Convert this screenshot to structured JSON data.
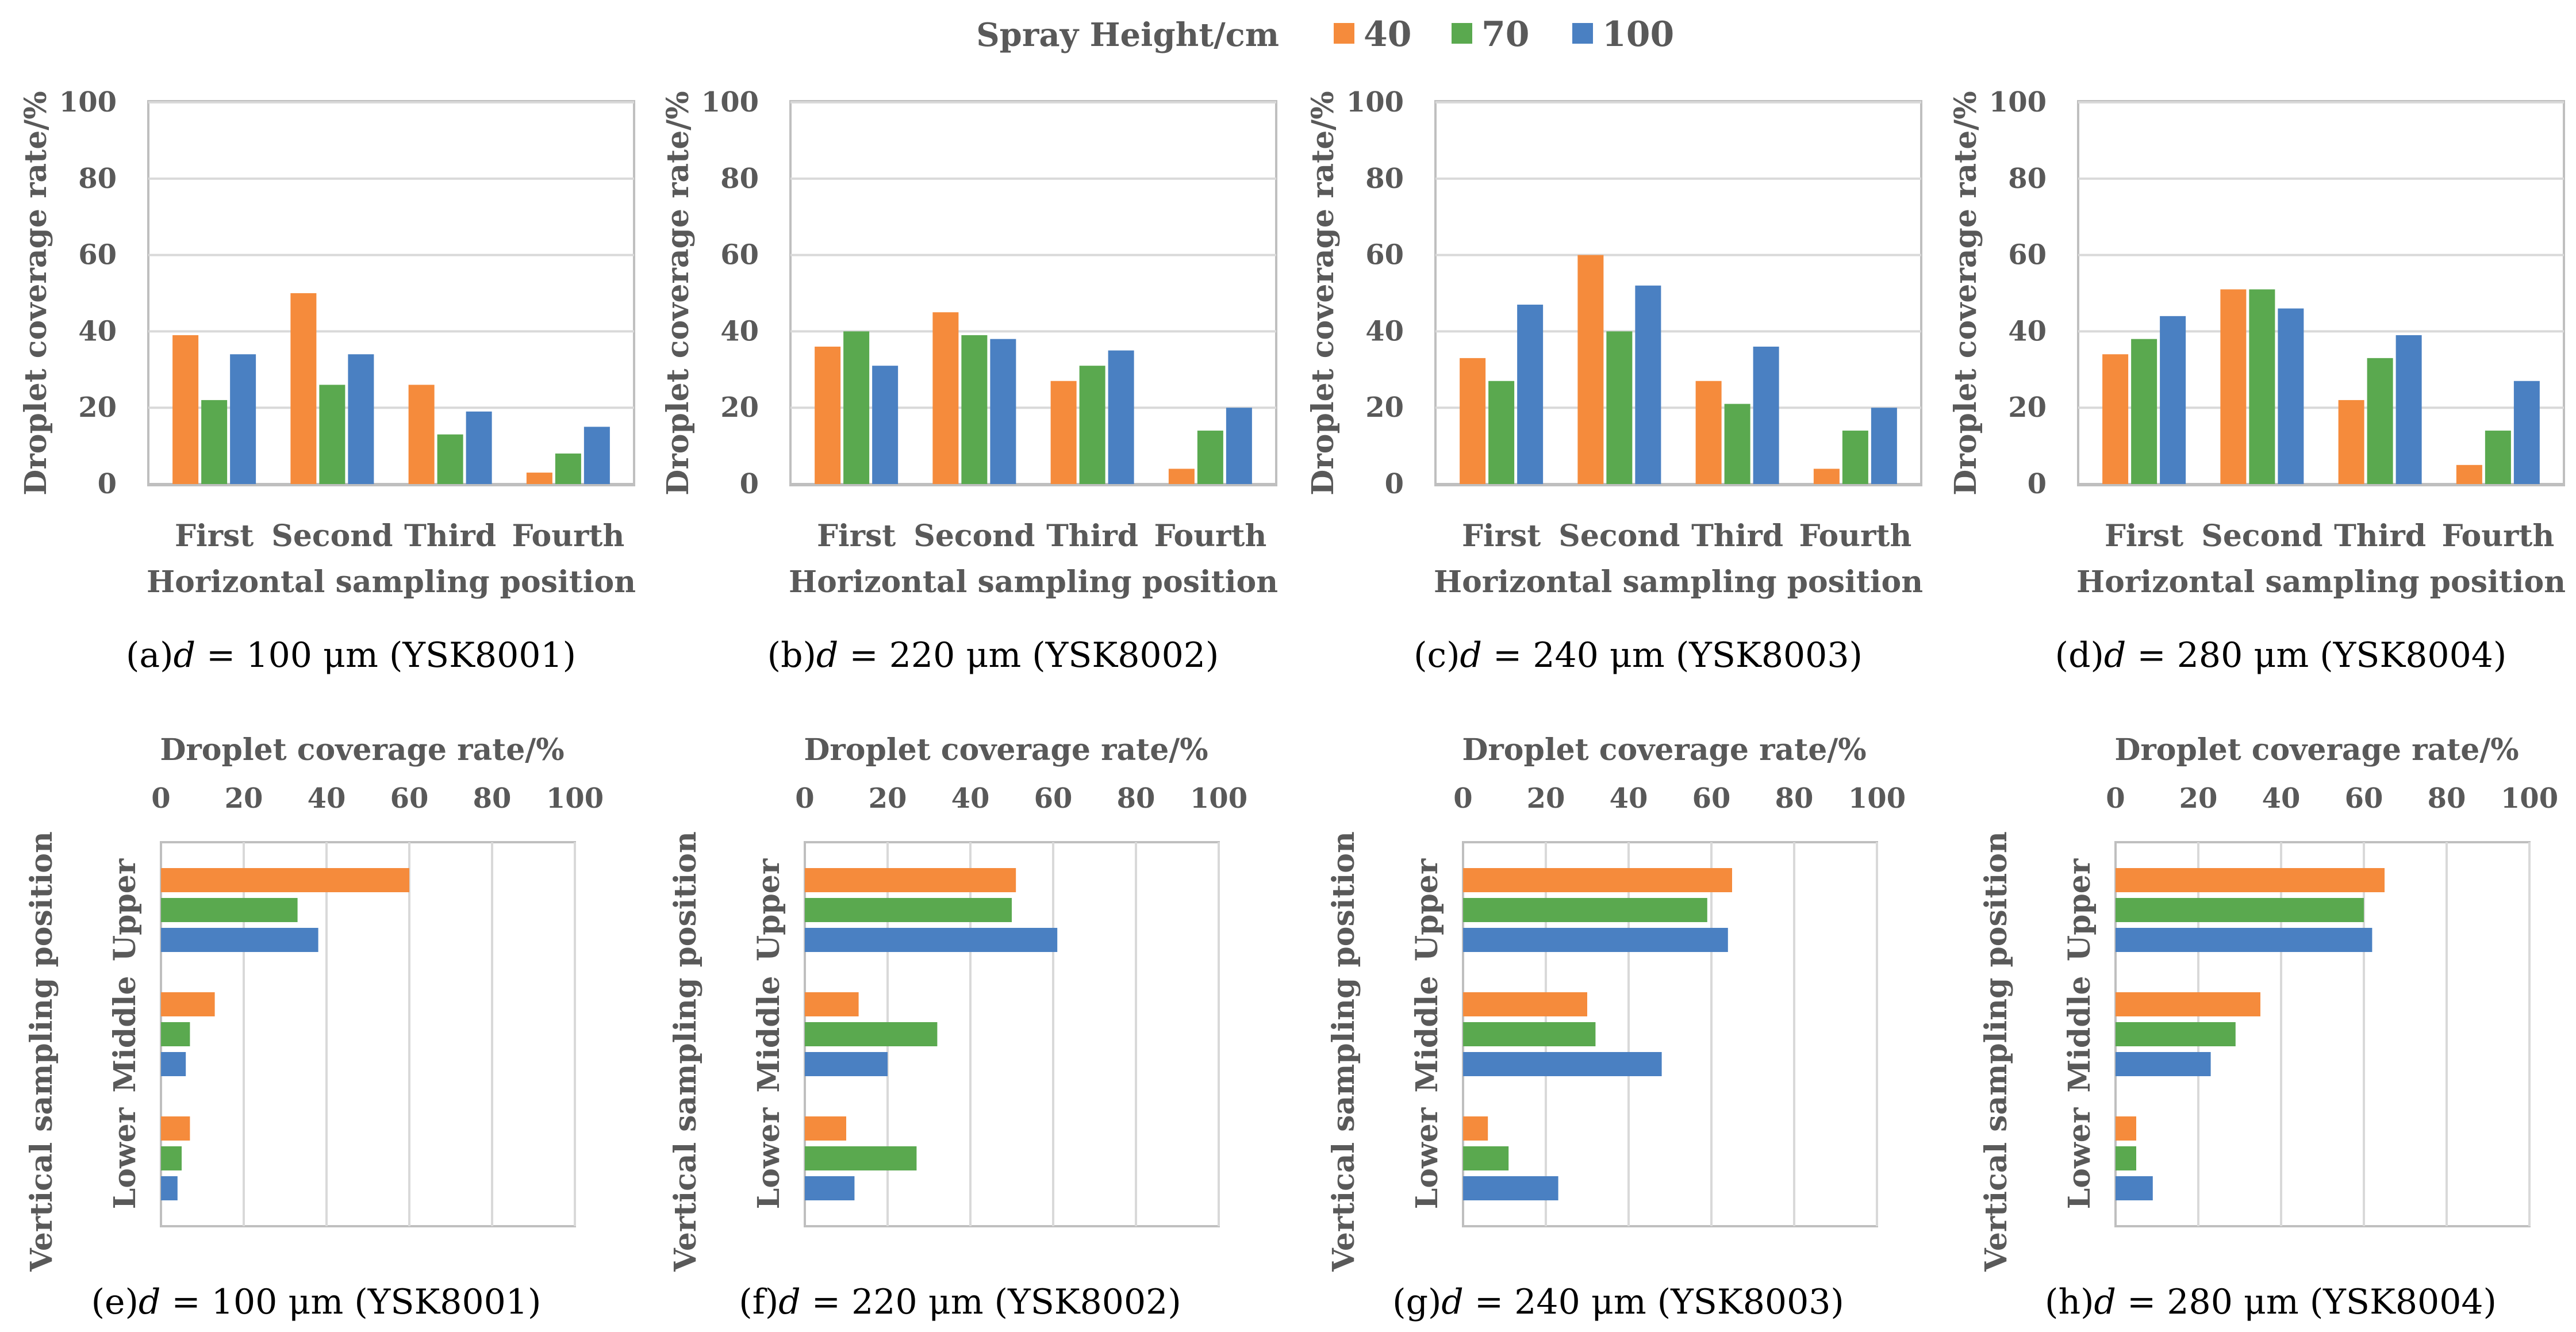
{
  "legend": {
    "title": "Spray Height/cm",
    "items": [
      {
        "label": "40",
        "color": "#f58b3c"
      },
      {
        "label": "70",
        "color": "#5aa94f"
      },
      {
        "label": "100",
        "color": "#4a80c2"
      }
    ]
  },
  "chart_data": [
    {
      "type": "bar",
      "orientation": "vertical",
      "title": "",
      "caption_prefix": "(a)",
      "caption_var": "d",
      "caption_rest": " = 100 μm (YSK8001)",
      "categories": [
        "First",
        "Second",
        "Third",
        "Fourth"
      ],
      "xlabel": "Horizontal sampling position",
      "ylabel": "Droplet coverage rate/%",
      "ylim": [
        0,
        100
      ],
      "yticks": [
        0,
        20,
        40,
        60,
        80,
        100
      ],
      "series": [
        {
          "name": "40",
          "values": [
            39,
            50,
            26,
            3
          ]
        },
        {
          "name": "70",
          "values": [
            22,
            26,
            13,
            8
          ]
        },
        {
          "name": "100",
          "values": [
            34,
            34,
            19,
            15
          ]
        }
      ]
    },
    {
      "type": "bar",
      "orientation": "vertical",
      "title": "",
      "caption_prefix": "(b)",
      "caption_var": "d",
      "caption_rest": " = 220 μm (YSK8002)",
      "categories": [
        "First",
        "Second",
        "Third",
        "Fourth"
      ],
      "xlabel": "Horizontal sampling position",
      "ylabel": "Droplet coverage rate/%",
      "ylim": [
        0,
        100
      ],
      "yticks": [
        0,
        20,
        40,
        60,
        80,
        100
      ],
      "series": [
        {
          "name": "40",
          "values": [
            36,
            45,
            27,
            4
          ]
        },
        {
          "name": "70",
          "values": [
            40,
            39,
            31,
            14
          ]
        },
        {
          "name": "100",
          "values": [
            31,
            38,
            35,
            20
          ]
        }
      ]
    },
    {
      "type": "bar",
      "orientation": "vertical",
      "title": "",
      "caption_prefix": "(c)",
      "caption_var": "d",
      "caption_rest": " = 240 μm (YSK8003)",
      "categories": [
        "First",
        "Second",
        "Third",
        "Fourth"
      ],
      "xlabel": "Horizontal sampling position",
      "ylabel": "Droplet coverage rate/%",
      "ylim": [
        0,
        100
      ],
      "yticks": [
        0,
        20,
        40,
        60,
        80,
        100
      ],
      "series": [
        {
          "name": "40",
          "values": [
            33,
            60,
            27,
            4
          ]
        },
        {
          "name": "70",
          "values": [
            27,
            40,
            21,
            14
          ]
        },
        {
          "name": "100",
          "values": [
            47,
            52,
            36,
            20
          ]
        }
      ]
    },
    {
      "type": "bar",
      "orientation": "vertical",
      "title": "",
      "caption_prefix": "(d)",
      "caption_var": "d",
      "caption_rest": " = 280 μm (YSK8004)",
      "categories": [
        "First",
        "Second",
        "Third",
        "Fourth"
      ],
      "xlabel": "Horizontal sampling position",
      "ylabel": "Droplet coverage rate/%",
      "ylim": [
        0,
        100
      ],
      "yticks": [
        0,
        20,
        40,
        60,
        80,
        100
      ],
      "series": [
        {
          "name": "40",
          "values": [
            34,
            51,
            22,
            5
          ]
        },
        {
          "name": "70",
          "values": [
            38,
            51,
            33,
            14
          ]
        },
        {
          "name": "100",
          "values": [
            44,
            46,
            39,
            27
          ]
        }
      ]
    },
    {
      "type": "bar",
      "orientation": "horizontal",
      "title": "",
      "caption_prefix": "(e)",
      "caption_var": "d",
      "caption_rest": " = 100 μm (YSK8001)",
      "categories": [
        "Upper",
        "Middle",
        "Lower"
      ],
      "xlabel": "Droplet coverage rate/%",
      "ylabel": "Vertical sampling position",
      "xlim": [
        0,
        100
      ],
      "xticks": [
        0,
        20,
        40,
        60,
        80,
        100
      ],
      "series": [
        {
          "name": "40",
          "values": [
            60,
            13,
            7
          ]
        },
        {
          "name": "70",
          "values": [
            33,
            7,
            5
          ]
        },
        {
          "name": "100",
          "values": [
            38,
            6,
            4
          ]
        }
      ]
    },
    {
      "type": "bar",
      "orientation": "horizontal",
      "title": "",
      "caption_prefix": "(f)",
      "caption_var": "d",
      "caption_rest": " = 220 μm (YSK8002)",
      "categories": [
        "Upper",
        "Middle",
        "Lower"
      ],
      "xlabel": "Droplet coverage rate/%",
      "ylabel": "Vertical sampling position",
      "xlim": [
        0,
        100
      ],
      "xticks": [
        0,
        20,
        40,
        60,
        80,
        100
      ],
      "series": [
        {
          "name": "40",
          "values": [
            51,
            13,
            10
          ]
        },
        {
          "name": "70",
          "values": [
            50,
            32,
            27
          ]
        },
        {
          "name": "100",
          "values": [
            61,
            20,
            12
          ]
        }
      ]
    },
    {
      "type": "bar",
      "orientation": "horizontal",
      "title": "",
      "caption_prefix": "(g)",
      "caption_var": "d",
      "caption_rest": " = 240 μm (YSK8003)",
      "categories": [
        "Upper",
        "Middle",
        "Lower"
      ],
      "xlabel": "Droplet coverage rate/%",
      "ylabel": "Vertical sampling position",
      "xlim": [
        0,
        100
      ],
      "xticks": [
        0,
        20,
        40,
        60,
        80,
        100
      ],
      "series": [
        {
          "name": "40",
          "values": [
            65,
            30,
            6
          ]
        },
        {
          "name": "70",
          "values": [
            59,
            32,
            11
          ]
        },
        {
          "name": "100",
          "values": [
            64,
            48,
            23
          ]
        }
      ]
    },
    {
      "type": "bar",
      "orientation": "horizontal",
      "title": "",
      "caption_prefix": "(h)",
      "caption_var": "d",
      "caption_rest": " = 280 μm (YSK8004)",
      "categories": [
        "Upper",
        "Middle",
        "Lower"
      ],
      "xlabel": "Droplet coverage rate/%",
      "ylabel": "Vertical sampling position",
      "xlim": [
        0,
        100
      ],
      "xticks": [
        0,
        20,
        40,
        60,
        80,
        100
      ],
      "series": [
        {
          "name": "40",
          "values": [
            65,
            35,
            5
          ]
        },
        {
          "name": "70",
          "values": [
            60,
            29,
            5
          ]
        },
        {
          "name": "100",
          "values": [
            62,
            23,
            9
          ]
        }
      ]
    }
  ]
}
